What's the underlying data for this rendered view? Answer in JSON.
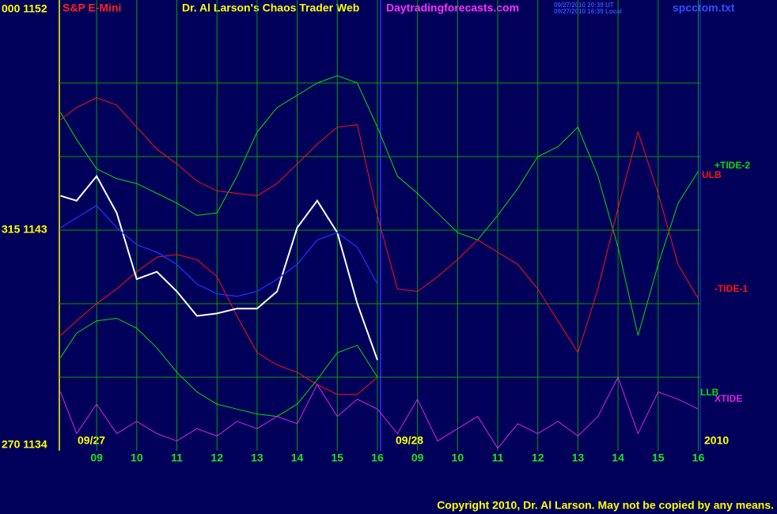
{
  "header": {
    "symbol": "S&P E-Mini",
    "title": "Dr. Al Larson's Chaos Trader Web",
    "site": "Daytradingforecasts.com",
    "time_ut": "09/27/2010 20:39 UT",
    "time_local": "09/27/2010 16:39 Local",
    "file": "spcctom.txt"
  },
  "copyright": "Copyright 2010, Dr. Al Larson. May not be copied by any means.",
  "chart_data": {
    "type": "line",
    "dates": [
      "09/27",
      "09/28",
      "2010"
    ],
    "x": [
      -0.9,
      -0.5,
      0,
      0.5,
      1,
      1.5,
      2,
      2.5,
      3,
      3.5,
      4,
      4.5,
      5,
      5.5,
      6,
      6.5,
      7,
      7.5,
      8,
      8.5,
      9,
      9.5,
      10,
      10.5,
      11,
      11.5,
      12,
      12.5,
      13,
      13.5,
      14,
      14.5,
      15
    ],
    "xlim": [
      -0.93,
      15.05
    ],
    "xticks": [
      {
        "value": 0,
        "label": "09"
      },
      {
        "value": 1,
        "label": "10"
      },
      {
        "value": 2,
        "label": "11"
      },
      {
        "value": 3,
        "label": "12"
      },
      {
        "value": 4,
        "label": "13"
      },
      {
        "value": 5,
        "label": "14"
      },
      {
        "value": 6,
        "label": "15"
      },
      {
        "value": 7,
        "label": "16"
      },
      {
        "value": 8,
        "label": "09"
      },
      {
        "value": 9,
        "label": "10"
      },
      {
        "value": 10,
        "label": "11"
      },
      {
        "value": 11,
        "label": "12"
      },
      {
        "value": 12,
        "label": "13"
      },
      {
        "value": 13,
        "label": "14"
      },
      {
        "value": 14,
        "label": "15"
      },
      {
        "value": 15,
        "label": "16"
      }
    ],
    "ylim": [
      1134,
      1152
    ],
    "yticks": [
      {
        "value": 1152,
        "label": "000 1152"
      },
      {
        "value": 1143,
        "label": "315 1143"
      },
      {
        "value": 1134,
        "label": "270 1134"
      }
    ],
    "ygrid": [
      1149,
      1146,
      1143,
      1140,
      1137
    ],
    "grid": true,
    "series": [
      {
        "name": "+TIDE-2",
        "color": "#00e000",
        "values": [
          1147.8,
          1146.7,
          1145.5,
          1145.1,
          1144.9,
          1144.5,
          1144.1,
          1143.6,
          1143.7,
          1145.2,
          1147.0,
          1148.0,
          1148.5,
          1149.0,
          1149.3,
          1149.0,
          1147.2,
          1145.2,
          1144.5,
          1143.7,
          1142.9,
          1142.6,
          1143.6,
          1144.7,
          1146.0,
          1146.4,
          1147.2,
          1145.2,
          1142.3,
          1138.7,
          1141.6,
          1144.1,
          1145.4
        ]
      },
      {
        "name": "ULB",
        "color": "#ff1010",
        "values": [
          1147.5,
          1148.0,
          1148.4,
          1148.1,
          1147.2,
          1146.3,
          1145.7,
          1145.0,
          1144.6,
          1144.5,
          1144.4,
          1144.9,
          1145.7,
          1146.5,
          1147.2,
          1147.3,
          1143.6,
          1140.6,
          1140.5,
          1141.1,
          1141.8,
          1142.6,
          1142.1,
          1141.6,
          1140.6,
          1139.3,
          1138.0,
          1140.6,
          1143.9,
          1147.0,
          1144.5,
          1141.6,
          1140.2
        ]
      },
      {
        "name": "-TIDE-1",
        "color": "#ff1010",
        "values": [
          1138.7,
          1139.3,
          1140.0,
          1140.6,
          1141.3,
          1141.9,
          1142.0,
          1141.8,
          1141.1,
          1139.5,
          1138.0,
          1137.5,
          1137.2,
          1136.7,
          1136.3,
          1136.3,
          1137.0,
          null,
          null,
          null,
          null,
          null,
          null,
          null,
          null,
          null,
          null,
          null,
          null,
          null,
          null,
          null,
          null
        ]
      },
      {
        "name": "LLB",
        "color": "#00e000",
        "values": [
          1137.8,
          1138.8,
          1139.3,
          1139.4,
          1139.0,
          1138.2,
          1137.2,
          1136.4,
          1135.9,
          1135.7,
          1135.5,
          1135.4,
          1135.9,
          1136.9,
          1138.0,
          1138.3,
          1137.0,
          null,
          null,
          null,
          null,
          null,
          null,
          null,
          null,
          null,
          null,
          null,
          null,
          null,
          null,
          null,
          null
        ]
      },
      {
        "name": "XTIDE",
        "color": "#e020e0",
        "values": [
          1136.4,
          1134.7,
          1135.9,
          1134.7,
          1135.2,
          1134.7,
          1134.4,
          1134.9,
          1134.6,
          1135.2,
          1134.9,
          1135.4,
          1135.1,
          1136.7,
          1135.4,
          1136.1,
          1135.7,
          1134.7,
          1136.1,
          1134.4,
          1134.9,
          1135.4,
          1134.1,
          1135.1,
          1134.7,
          1135.2,
          1134.6,
          1135.4,
          1137.0,
          1134.7,
          1136.4,
          1136.1,
          1135.7
        ]
      }
    ],
    "overlays": [
      {
        "color": "#ffffff",
        "values": [
          1144.4,
          1144.2,
          1145.2,
          1143.7,
          1141.0,
          1141.3,
          1140.5,
          1139.5,
          1139.6,
          1139.8,
          1139.8,
          1140.5,
          1143.1,
          1144.2,
          1142.9,
          1140.0,
          1137.7,
          null,
          null,
          null,
          null,
          null,
          null,
          null,
          null,
          null,
          null,
          null,
          null,
          null,
          null,
          null,
          null
        ]
      },
      {
        "color": "#2030ff",
        "values": [
          1143.1,
          1143.5,
          1144.0,
          1143.1,
          1142.4,
          1142.1,
          1141.6,
          1140.8,
          1140.4,
          1140.3,
          1140.5,
          1141.0,
          1141.6,
          1142.6,
          1142.9,
          1142.3,
          1140.8,
          null,
          null,
          null,
          null,
          null,
          null,
          null,
          null,
          null,
          null,
          null,
          null,
          null,
          null,
          null,
          null
        ]
      }
    ]
  }
}
